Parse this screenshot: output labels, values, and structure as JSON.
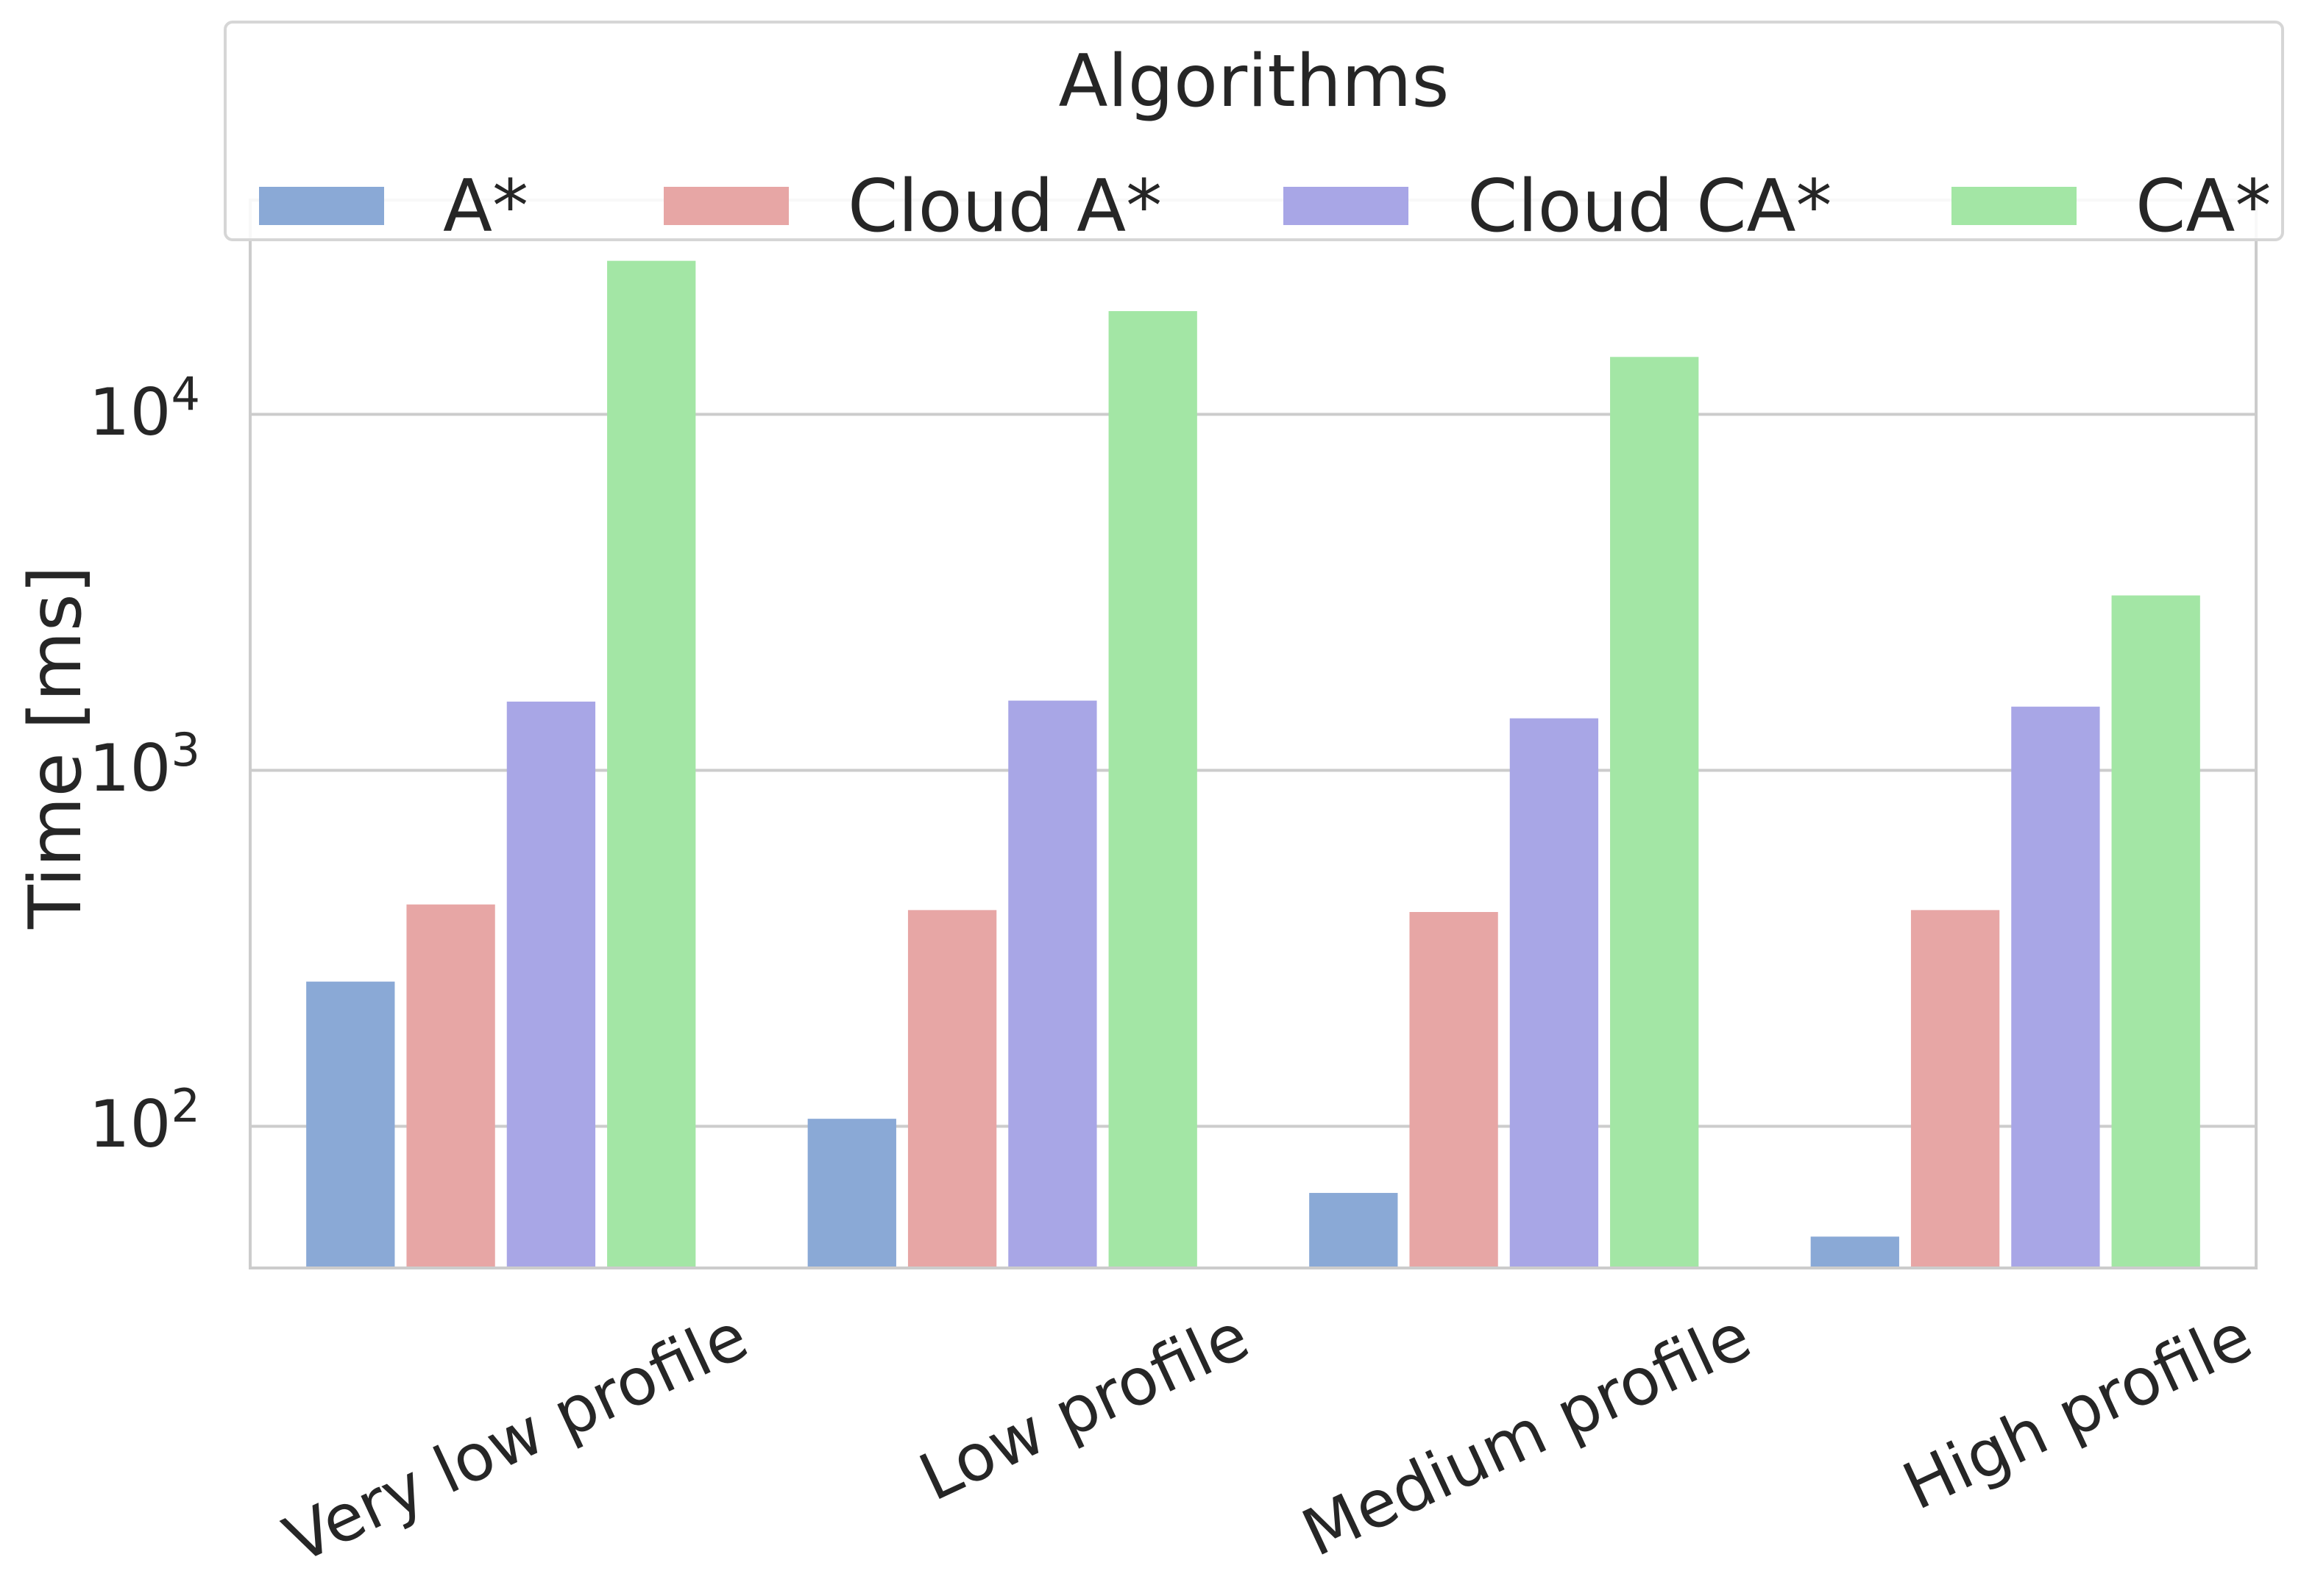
{
  "chart_data": {
    "type": "bar",
    "categories": [
      "Very low profile",
      "Low profile",
      "Medium profile",
      "High profile"
    ],
    "series": [
      {
        "name": "A*",
        "values": [
          255,
          105,
          65,
          49
        ],
        "color": "#8aa9d6"
      },
      {
        "name": "Cloud A*",
        "values": [
          420,
          405,
          400,
          405
        ],
        "color": "#e7a6a5"
      },
      {
        "name": "Cloud CA*",
        "values": [
          1560,
          1570,
          1400,
          1510
        ],
        "color": "#a8a6e6"
      },
      {
        "name": "CA*",
        "values": [
          27000,
          19500,
          14500,
          3100
        ],
        "color": "#a3e6a5"
      }
    ],
    "title": "",
    "xlabel": "",
    "ylabel": "Time [ms]",
    "yscale": "log",
    "ylim": [
      40,
      40000
    ],
    "yticks": [
      {
        "value": 100,
        "base": "10",
        "exp": "2"
      },
      {
        "value": 1000,
        "base": "10",
        "exp": "3"
      },
      {
        "value": 10000,
        "base": "10",
        "exp": "4"
      }
    ],
    "grid": "horizontal",
    "legend": {
      "title": "Algorithms",
      "placement": "top",
      "columns": 4
    }
  }
}
